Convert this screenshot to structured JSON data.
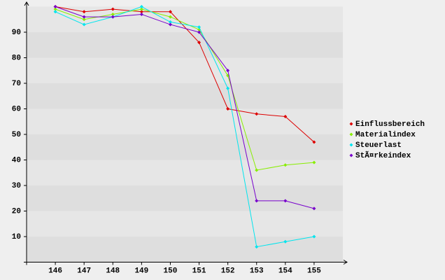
{
  "chart_data": {
    "type": "line",
    "x": [
      146,
      147,
      148,
      149,
      150,
      151,
      152,
      153,
      154,
      155
    ],
    "xlim": [
      145,
      156
    ],
    "xticks": [
      146,
      147,
      148,
      149,
      150,
      151,
      152,
      153,
      154,
      155
    ],
    "ylim": [
      0,
      100
    ],
    "yticks": [
      10,
      20,
      30,
      40,
      50,
      60,
      70,
      80,
      90
    ],
    "grid": true,
    "legend": "right",
    "series": [
      {
        "name": "Einflussbereich",
        "color": "#dd0000",
        "values": [
          100,
          98,
          99,
          98,
          98,
          86,
          60,
          58,
          57,
          47
        ]
      },
      {
        "name": "Materialindex",
        "color": "#88ee00",
        "values": [
          99,
          95,
          97,
          99,
          96,
          91,
          73,
          36,
          38,
          39
        ]
      },
      {
        "name": "Steuerlast",
        "color": "#00e5ee",
        "values": [
          98,
          93,
          96,
          100,
          94,
          92,
          68,
          6,
          8,
          10
        ]
      },
      {
        "name": "StÃ¤rkeindex",
        "color": "#7700cc",
        "values": [
          100,
          96,
          96,
          97,
          93,
          90,
          75,
          24,
          24,
          21
        ]
      }
    ]
  }
}
